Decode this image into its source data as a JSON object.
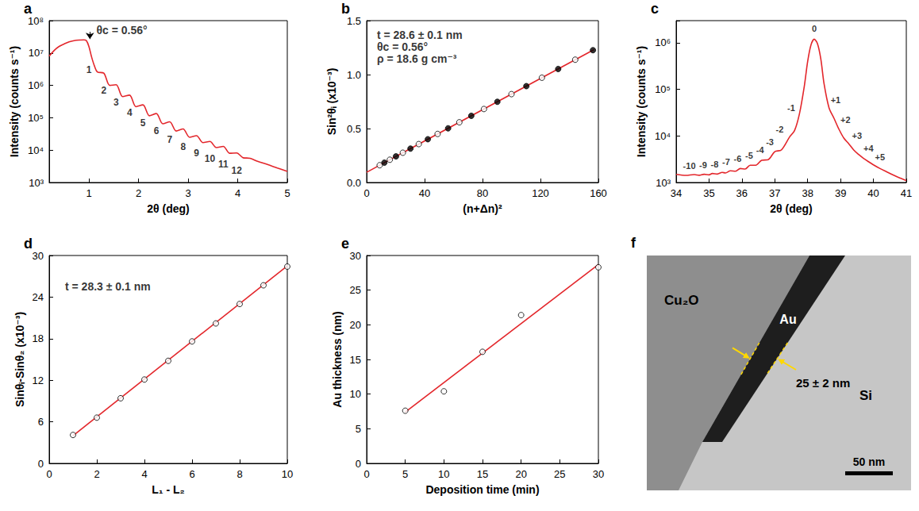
{
  "chart_data": [
    {
      "type": "line",
      "title": "a",
      "x_label": "2θ (deg)",
      "y_label": "Intensity (counts s⁻¹)",
      "log": "y",
      "grid": false,
      "series": [
        {
          "type": "line",
          "color": "#e3262b",
          "x": [
            0.2,
            0.3,
            0.4,
            0.5,
            0.6,
            0.7,
            0.8,
            0.9,
            0.95,
            1.0,
            1.05,
            1.1,
            1.17,
            1.3,
            1.42,
            1.55,
            1.68,
            1.82,
            1.95,
            2.09,
            2.22,
            2.36,
            2.49,
            2.63,
            2.76,
            2.9,
            3.03,
            3.17,
            3.3,
            3.44,
            3.57,
            3.71,
            3.84,
            3.98,
            4.11,
            4.25,
            4.4,
            4.6,
            4.8,
            5.0
          ],
          "values": [
            8000000,
            12000000,
            16000000,
            19000000,
            22000000,
            24000000,
            25000000,
            25500000,
            24000000,
            16000000,
            8000000,
            4500000,
            2600000,
            2400000,
            1000000,
            1050000,
            450000,
            500000,
            220000,
            250000,
            115000,
            135000,
            65000,
            75000,
            39000,
            45000,
            25000,
            28000,
            17000,
            18500,
            12000,
            13000,
            8000,
            8200,
            5800,
            5600,
            4500,
            3600,
            2800,
            2200
          ]
        }
      ],
      "xlim": [
        0.2,
        5
      ],
      "xticks": [
        1,
        2,
        3,
        4,
        5
      ],
      "ylim": [
        1000,
        100000000
      ],
      "yticks": [
        {
          "value": 1000,
          "label": "10³"
        },
        {
          "value": 10000,
          "label": "10⁴"
        },
        {
          "value": 100000,
          "label": "10⁵"
        },
        {
          "value": 1000000,
          "label": "10⁶"
        },
        {
          "value": 10000000,
          "label": "10⁷"
        },
        {
          "value": 100000000,
          "label": "10⁸"
        }
      ],
      "annotations": [
        {
          "text": "θc = 0.56°",
          "x": 1.12,
          "y": 50000000
        }
      ],
      "arrow": {
        "x": 1.02,
        "y_from": 45000000,
        "y_to": 27000000
      },
      "fringe_labels": [
        {
          "text": "1",
          "x": 1.0,
          "y": 3000000
        },
        {
          "text": "2",
          "x": 1.3,
          "y": 690000
        },
        {
          "text": "3",
          "x": 1.55,
          "y": 300000
        },
        {
          "text": "4",
          "x": 1.82,
          "y": 140000
        },
        {
          "text": "5",
          "x": 2.09,
          "y": 70000
        },
        {
          "text": "6",
          "x": 2.36,
          "y": 39000
        },
        {
          "text": "7",
          "x": 2.63,
          "y": 21000
        },
        {
          "text": "8",
          "x": 2.9,
          "y": 13000
        },
        {
          "text": "9",
          "x": 3.17,
          "y": 8000
        },
        {
          "text": "10",
          "x": 3.44,
          "y": 5300
        },
        {
          "text": "11",
          "x": 3.71,
          "y": 3700
        },
        {
          "text": "12",
          "x": 3.98,
          "y": 2300
        }
      ]
    },
    {
      "type": "scatter",
      "title": "b",
      "x_label": "(n+Δn)²",
      "y_label": "Sin²θᵢ (x10⁻³)",
      "grid": false,
      "series": [
        {
          "type": "scatter",
          "marker": "open circle",
          "color": "#000000",
          "x": [
            9,
            16,
            25,
            36,
            49,
            64,
            81,
            100,
            121,
            144
          ],
          "values": [
            0.16,
            0.211,
            0.276,
            0.356,
            0.45,
            0.558,
            0.681,
            0.819,
            0.971,
            1.138
          ]
        },
        {
          "type": "scatter",
          "marker": "filled circle",
          "color": "#000000",
          "x": [
            12.25,
            20.25,
            30.25,
            42.25,
            56.25,
            72.25,
            90.25,
            110.25,
            132.25,
            156.25
          ],
          "values": [
            0.184,
            0.242,
            0.314,
            0.401,
            0.502,
            0.618,
            0.748,
            0.893,
            1.052,
            1.226
          ]
        },
        {
          "type": "line",
          "color": "#e3262b",
          "x": [
            0,
            157
          ],
          "values": [
            0.095,
            1.232
          ]
        }
      ],
      "xlim": [
        0,
        160
      ],
      "xticks": [
        0,
        40,
        80,
        120,
        160
      ],
      "ylim": [
        0,
        1.5
      ],
      "yticks": [
        {
          "value": 0,
          "label": "0.0"
        },
        {
          "value": 0.5,
          "label": "0.5"
        },
        {
          "value": 1.0,
          "label": "1.0"
        },
        {
          "value": 1.5,
          "label": "1.5"
        }
      ],
      "annotations": [
        {
          "text": "t = 28.6 ± 0.1 nm",
          "x": 6,
          "y": 1.37
        },
        {
          "text": "θc = 0.56°",
          "x": 6,
          "y": 1.26
        },
        {
          "text": "ρ = 18.6 g cm⁻³",
          "x": 6,
          "y": 1.15
        }
      ]
    },
    {
      "type": "line",
      "title": "c",
      "x_label": "2θ (deg)",
      "y_label": "Intensity (counts s⁻¹)",
      "log": "y",
      "grid": false,
      "series": [
        {
          "type": "line",
          "color": "#e3262b",
          "x": [
            34.0,
            34.3,
            34.55,
            34.7,
            34.85,
            35.0,
            35.1,
            35.25,
            35.4,
            35.5,
            35.65,
            35.8,
            35.95,
            36.1,
            36.25,
            36.42,
            36.6,
            36.8,
            37.0,
            37.2,
            37.45,
            37.6,
            37.75,
            37.9,
            38.0,
            38.1,
            38.2,
            38.3,
            38.4,
            38.5,
            38.65,
            38.8,
            38.95,
            39.1,
            39.25,
            39.4,
            39.55,
            39.7,
            39.85,
            40.0,
            40.2,
            40.4,
            40.6,
            40.8,
            41.0
          ],
          "values": [
            1500,
            1420,
            1480,
            1430,
            1500,
            1460,
            1560,
            1520,
            1650,
            1600,
            1780,
            1750,
            2000,
            1950,
            2350,
            2350,
            3000,
            3100,
            4600,
            5000,
            9500,
            13000,
            30000,
            120000,
            400000,
            900000,
            1200000,
            950000,
            450000,
            130000,
            40000,
            24000,
            14000,
            9000,
            6800,
            5000,
            4000,
            3300,
            2800,
            2400,
            2000,
            1700,
            1450,
            1250,
            1100
          ]
        }
      ],
      "xlim": [
        34,
        41
      ],
      "xticks": [
        34,
        35,
        36,
        37,
        38,
        39,
        40,
        41
      ],
      "ylim": [
        1000,
        3000000
      ],
      "yticks": [
        {
          "value": 1000,
          "label": "10³"
        },
        {
          "value": 10000,
          "label": "10⁴"
        },
        {
          "value": 100000,
          "label": "10⁵"
        },
        {
          "value": 1000000,
          "label": "10⁶"
        }
      ],
      "fringe_labels": [
        {
          "text": "-10",
          "x": 34.4,
          "y": 2300
        },
        {
          "text": "-9",
          "x": 34.82,
          "y": 2400
        },
        {
          "text": "-8",
          "x": 35.17,
          "y": 2500
        },
        {
          "text": "-7",
          "x": 35.52,
          "y": 2800
        },
        {
          "text": "-6",
          "x": 35.87,
          "y": 3200
        },
        {
          "text": "-5",
          "x": 36.22,
          "y": 3800
        },
        {
          "text": "-4",
          "x": 36.55,
          "y": 5000
        },
        {
          "text": "-3",
          "x": 36.85,
          "y": 7500
        },
        {
          "text": "-2",
          "x": 37.15,
          "y": 14000
        },
        {
          "text": "-1",
          "x": 37.5,
          "y": 40000
        },
        {
          "text": "0",
          "x": 38.2,
          "y": 2000000
        },
        {
          "text": "+1",
          "x": 38.85,
          "y": 60000
        },
        {
          "text": "+2",
          "x": 39.15,
          "y": 22000
        },
        {
          "text": "+3",
          "x": 39.5,
          "y": 10000
        },
        {
          "text": "+4",
          "x": 39.85,
          "y": 5500
        },
        {
          "text": "+5",
          "x": 40.2,
          "y": 3500
        }
      ]
    },
    {
      "type": "scatter",
      "title": "d",
      "x_label": "L₁ - L₂",
      "y_label": "Sinθᵢ-Sinθ₂ (x10⁻³)",
      "grid": false,
      "series": [
        {
          "type": "scatter",
          "marker": "open circle",
          "color": "#000000",
          "x": [
            1,
            2,
            3,
            4,
            5,
            6,
            7,
            8,
            9,
            10
          ],
          "values": [
            4.1,
            6.6,
            9.4,
            12.1,
            14.8,
            17.6,
            20.2,
            23.0,
            25.7,
            28.4
          ]
        },
        {
          "type": "line",
          "color": "#e3262b",
          "x": [
            1,
            10
          ],
          "values": [
            4.0,
            28.5
          ]
        }
      ],
      "xlim": [
        0,
        10
      ],
      "xticks": [
        0,
        2,
        4,
        6,
        8,
        10
      ],
      "ylim": [
        0,
        30
      ],
      "yticks": [
        0,
        6,
        12,
        18,
        24,
        30
      ],
      "annotations": [
        {
          "text": "t = 28.3 ± 0.1 nm",
          "x": 0.6,
          "y": 25.5
        }
      ]
    },
    {
      "type": "scatter",
      "title": "e",
      "x_label": "Deposition time (min)",
      "y_label": "Au thickness (nm)",
      "grid": false,
      "series": [
        {
          "type": "scatter",
          "marker": "open circle",
          "color": "#000000",
          "x": [
            5,
            10,
            15,
            20,
            30
          ],
          "values": [
            7.6,
            10.4,
            16.1,
            21.4,
            28.3
          ]
        },
        {
          "type": "line",
          "color": "#e3262b",
          "x": [
            5,
            30
          ],
          "values": [
            7.4,
            28.7
          ]
        }
      ],
      "xlim": [
        0,
        30
      ],
      "xticks": [
        0,
        5,
        10,
        15,
        20,
        25,
        30
      ],
      "ylim": [
        0,
        30
      ],
      "yticks": [
        0,
        5,
        10,
        15,
        20,
        25,
        30
      ]
    }
  ],
  "image_panel": {
    "title": "f",
    "left_region": "Cu₂O",
    "band": "Au",
    "right_region": "Si",
    "thickness": "25 ± 2 nm",
    "scale_bar": "50 nm"
  }
}
